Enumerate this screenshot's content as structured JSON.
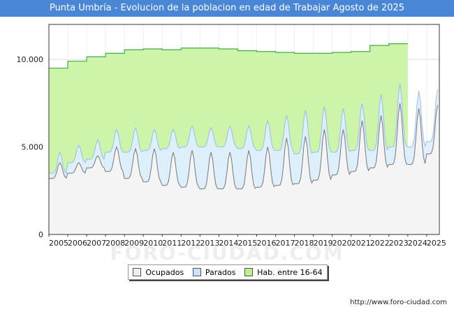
{
  "title": "Punta Umbría - Evolucion de la poblacion en edad de Trabajar Agosto de 2025",
  "source": "http://www.foro-ciudad.com",
  "watermark": "FORO-CIUDAD.COM",
  "colors": {
    "title_bg": "#4a86d6",
    "hab_fill": "#ccf5aa",
    "hab_line": "#44aa44",
    "parados_fill": "#ddeeff",
    "parados_line": "#99bbee",
    "ocupados_fill": "#f4f4f4",
    "ocupados_line": "#777777",
    "grid": "#dddddd"
  },
  "legend": [
    {
      "label": "Ocupados",
      "color": "#eeeeee"
    },
    {
      "label": "Parados",
      "color": "#cce0ff"
    },
    {
      "label": "Hab. entre 16-64",
      "color": "#bbf090"
    }
  ],
  "chart_data": {
    "type": "area",
    "x_range": [
      2005,
      2025.67
    ],
    "ylim": [
      0,
      12000
    ],
    "y_ticks": [
      0,
      5000,
      10000
    ],
    "y_tick_labels": [
      "0",
      "5.000",
      "10.000"
    ],
    "x_tick_labels": [
      "2005",
      "2006",
      "2007",
      "2008",
      "2009",
      "2010",
      "2011",
      "2012",
      "2013",
      "2014",
      "2015",
      "2016",
      "2017",
      "2018",
      "2019",
      "2020",
      "2021",
      "2022",
      "2023",
      "2024",
      "2025"
    ],
    "grid": true,
    "legend_position": "bottom",
    "hab_entre_16_64": {
      "years": [
        2005,
        2006,
        2007,
        2008,
        2009,
        2010,
        2011,
        2012,
        2013,
        2014,
        2015,
        2016,
        2017,
        2018,
        2019,
        2020,
        2021,
        2022,
        2023
      ],
      "values": [
        9500,
        9900,
        10150,
        10350,
        10550,
        10600,
        10550,
        10650,
        10650,
        10600,
        10500,
        10450,
        10400,
        10350,
        10350,
        10400,
        10450,
        10800,
        10900
      ]
    },
    "ocupados": {
      "years": [
        2005,
        2006,
        2007,
        2008,
        2009,
        2010,
        2011,
        2012,
        2013,
        2014,
        2015,
        2016,
        2017,
        2018,
        2019,
        2020,
        2021,
        2022,
        2023,
        2024,
        2025
      ],
      "base": [
        3200,
        3500,
        3800,
        3600,
        3200,
        3000,
        2800,
        2700,
        2600,
        2600,
        2600,
        2700,
        2800,
        2900,
        3100,
        3400,
        3600,
        3800,
        4000,
        4000,
        4600
      ],
      "peak": [
        4100,
        4100,
        4500,
        5000,
        4900,
        4900,
        4700,
        4800,
        4700,
        4700,
        4800,
        5000,
        5500,
        5600,
        6000,
        6000,
        6500,
        6800,
        7500,
        7200,
        7400
      ]
    },
    "parados": {
      "years": [
        2005,
        2006,
        2007,
        2008,
        2009,
        2010,
        2011,
        2012,
        2013,
        2014,
        2015,
        2016,
        2017,
        2018,
        2019,
        2020,
        2021,
        2022,
        2023,
        2024,
        2025
      ],
      "base": [
        3300,
        4100,
        4300,
        4700,
        4700,
        4800,
        4900,
        5000,
        5000,
        5000,
        4900,
        4800,
        4800,
        4600,
        4700,
        4700,
        4800,
        4800,
        5000,
        5000,
        5300
      ],
      "peak": [
        4700,
        5100,
        5400,
        6000,
        6100,
        6000,
        6000,
        6200,
        6100,
        6200,
        6200,
        6500,
        6800,
        7100,
        7300,
        7200,
        7500,
        8000,
        8600,
        8200,
        8300
      ]
    }
  }
}
